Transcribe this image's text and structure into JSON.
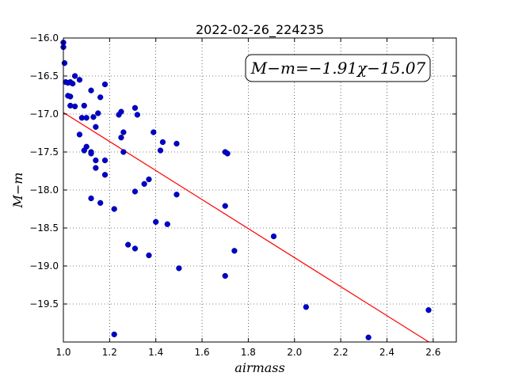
{
  "chart_data": {
    "type": "scatter",
    "title": "2022-02-26_224235",
    "xlabel": "airmass",
    "ylabel": "M−m",
    "xlim": [
      1.0,
      2.7
    ],
    "ylim": [
      -20.0,
      -16.0
    ],
    "y_inverted": true,
    "grid": true,
    "xticks": [
      "1.0",
      "1.2",
      "1.4",
      "1.6",
      "1.8",
      "2.0",
      "2.2",
      "2.4",
      "2.6"
    ],
    "yticks": [
      "−16.0",
      "−16.5",
      "−17.0",
      "−17.5",
      "−18.0",
      "−18.5",
      "−19.0",
      "−19.5"
    ],
    "annotation": "M−m=−1.91χ−15.07",
    "fit": {
      "slope": -1.91,
      "intercept": -15.07,
      "color": "#ff0000",
      "x_range": [
        1.0,
        2.6
      ]
    },
    "point_color": "#0000cc",
    "points": [
      [
        1.0,
        -16.06
      ],
      [
        1.0,
        -16.12
      ],
      [
        1.005,
        -16.33
      ],
      [
        1.01,
        -16.58
      ],
      [
        1.02,
        -16.59
      ],
      [
        1.03,
        -16.58
      ],
      [
        1.04,
        -16.6
      ],
      [
        1.05,
        -16.5
      ],
      [
        1.02,
        -16.76
      ],
      [
        1.03,
        -16.77
      ],
      [
        1.07,
        -16.55
      ],
      [
        1.03,
        -16.89
      ],
      [
        1.05,
        -16.9
      ],
      [
        1.08,
        -17.05
      ],
      [
        1.09,
        -16.89
      ],
      [
        1.1,
        -17.05
      ],
      [
        1.12,
        -16.69
      ],
      [
        1.13,
        -17.04
      ],
      [
        1.16,
        -16.78
      ],
      [
        1.18,
        -16.61
      ],
      [
        1.15,
        -16.99
      ],
      [
        1.14,
        -17.17
      ],
      [
        1.07,
        -17.27
      ],
      [
        1.1,
        -17.43
      ],
      [
        1.09,
        -17.48
      ],
      [
        1.12,
        -17.5
      ],
      [
        1.12,
        -17.52
      ],
      [
        1.14,
        -17.61
      ],
      [
        1.14,
        -17.71
      ],
      [
        1.18,
        -17.61
      ],
      [
        1.18,
        -17.8
      ],
      [
        1.12,
        -18.11
      ],
      [
        1.16,
        -18.17
      ],
      [
        1.22,
        -18.25
      ],
      [
        1.24,
        -17.01
      ],
      [
        1.25,
        -16.97
      ],
      [
        1.25,
        -17.31
      ],
      [
        1.26,
        -17.24
      ],
      [
        1.26,
        -17.5
      ],
      [
        1.31,
        -16.92
      ],
      [
        1.32,
        -17.01
      ],
      [
        1.39,
        -17.24
      ],
      [
        1.43,
        -17.37
      ],
      [
        1.42,
        -17.48
      ],
      [
        1.49,
        -17.39
      ],
      [
        1.35,
        -17.92
      ],
      [
        1.37,
        -17.86
      ],
      [
        1.31,
        -18.02
      ],
      [
        1.49,
        -18.06
      ],
      [
        1.4,
        -18.42
      ],
      [
        1.45,
        -18.45
      ],
      [
        1.28,
        -18.72
      ],
      [
        1.31,
        -18.77
      ],
      [
        1.37,
        -18.86
      ],
      [
        1.5,
        -19.03
      ],
      [
        1.7,
        -17.5
      ],
      [
        1.71,
        -17.52
      ],
      [
        1.7,
        -18.21
      ],
      [
        1.74,
        -18.8
      ],
      [
        1.7,
        -19.13
      ],
      [
        1.91,
        -18.61
      ],
      [
        2.05,
        -19.54
      ],
      [
        2.32,
        -19.94
      ],
      [
        2.58,
        -19.58
      ],
      [
        1.22,
        -19.9
      ]
    ]
  }
}
